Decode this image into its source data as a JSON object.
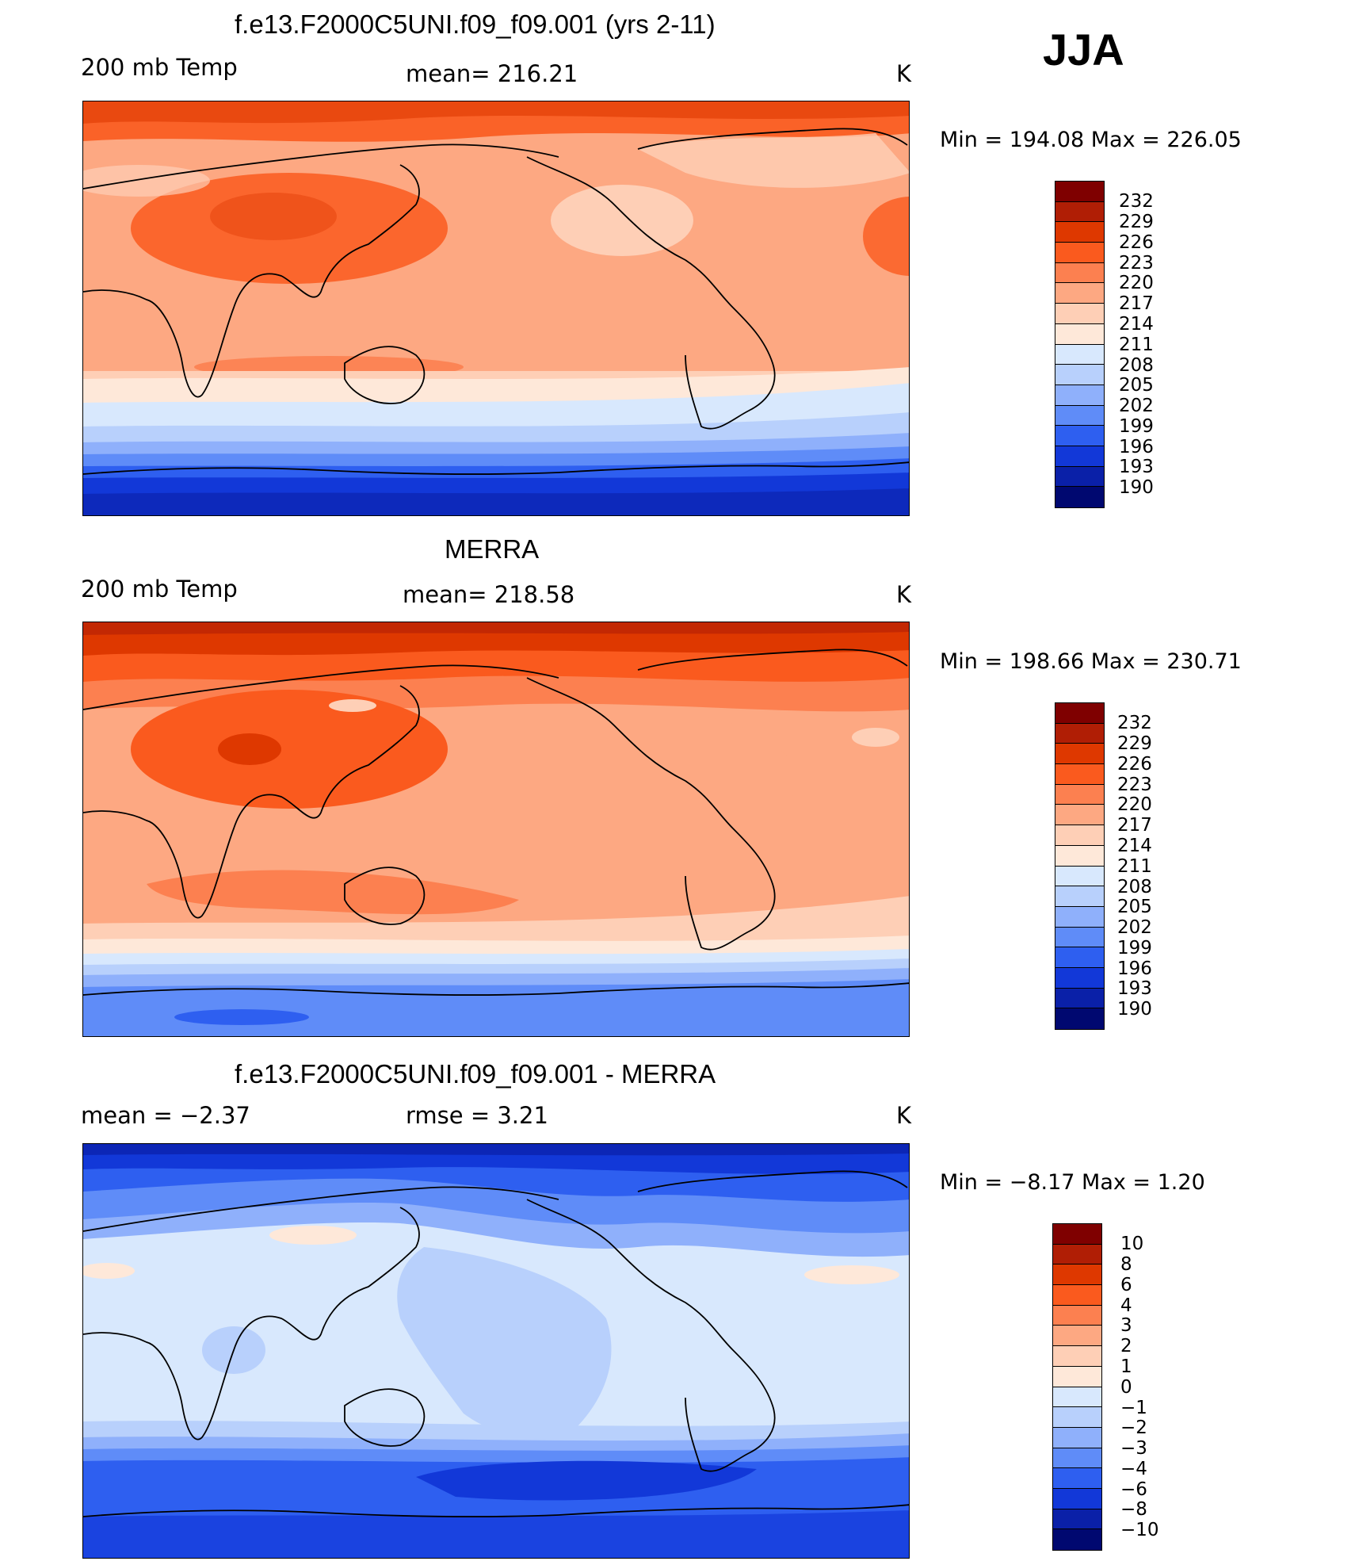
{
  "season": "JJA",
  "panels": [
    {
      "title": "f.e13.F2000C5UNI.f09_f09.001 (yrs 2-11)",
      "left_label": "200 mb Temp",
      "mid_label": "mean=  216.21",
      "units": "K",
      "minmax": "Min  =  194.08  Max  =  226.05",
      "colorbar_labels": [
        "232",
        "229",
        "226",
        "223",
        "220",
        "217",
        "214",
        "211",
        "208",
        "205",
        "202",
        "199",
        "196",
        "193",
        "190"
      ]
    },
    {
      "title": "MERRA",
      "left_label": "200 mb Temp",
      "mid_label": "mean=  218.58",
      "units": "K",
      "minmax": "Min  =  198.66  Max  =  230.71",
      "colorbar_labels": [
        "232",
        "229",
        "226",
        "223",
        "220",
        "217",
        "214",
        "211",
        "208",
        "205",
        "202",
        "199",
        "196",
        "193",
        "190"
      ]
    },
    {
      "title": "f.e13.F2000C5UNI.f09_f09.001 - MERRA",
      "left_label": "mean  =     −2.37",
      "mid_label": "rmse  =      3.21",
      "units": "K",
      "minmax": "Min  =    −8.17  Max  =      1.20",
      "colorbar_labels": [
        "10",
        "8",
        "6",
        "4",
        "3",
        "2",
        "1",
        "0",
        "−1",
        "−2",
        "−3",
        "−4",
        "−6",
        "−8",
        "−10"
      ]
    }
  ],
  "colors": {
    "temp_scale": [
      "#7f0000",
      "#b01e05",
      "#de3800",
      "#fa5a1e",
      "#fc8050",
      "#fda882",
      "#fecfb6",
      "#fee8d9",
      "#d8e8fd",
      "#b8d0fc",
      "#8fb0fb",
      "#5f8cf8",
      "#2e5ff0",
      "#1238d8",
      "#0a20a8",
      "#000870"
    ],
    "diff_scale": [
      "#7f0000",
      "#b01e05",
      "#de3800",
      "#fa5a1e",
      "#fc8050",
      "#fda882",
      "#fecfb6",
      "#fee8d9",
      "#d8e8fd",
      "#b8d0fc",
      "#8fb0fb",
      "#5f8cf8",
      "#2e5ff0",
      "#1238d8",
      "#0a20a8",
      "#000870"
    ]
  }
}
